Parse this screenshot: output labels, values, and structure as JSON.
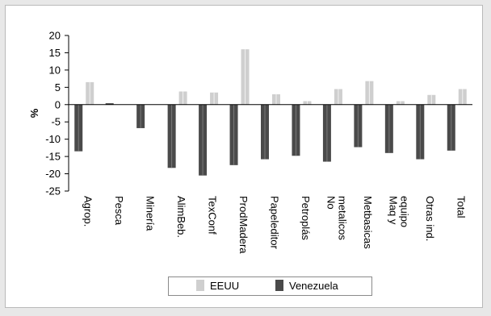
{
  "chart_data": {
    "type": "bar",
    "title": "",
    "xlabel": "",
    "ylabel": "%",
    "ylim": [
      -25,
      20
    ],
    "yticks": [
      20,
      15,
      10,
      5,
      0,
      -5,
      -10,
      -15,
      -20,
      -25
    ],
    "grid": false,
    "legend_position": "bottom",
    "categories": [
      "Agrop.",
      "Pesca",
      "Minería",
      "AlimBeb.",
      "TexConf",
      "ProdMadera",
      "Papeleditor",
      "Petroplás",
      "No metalicos",
      "Metbasicas",
      "Maq y equipo",
      "Otras ind.",
      "Total"
    ],
    "category_lines": [
      [
        "Agrop."
      ],
      [
        "Pesca"
      ],
      [
        "Minería"
      ],
      [
        "AlimBeb."
      ],
      [
        "TexConf"
      ],
      [
        "ProdMadera"
      ],
      [
        "Papeleditor"
      ],
      [
        "Petroplás"
      ],
      [
        "No",
        "metalicos"
      ],
      [
        "Metbasicas"
      ],
      [
        "Maq y",
        "equipo"
      ],
      [
        "Otras ind."
      ],
      [
        "Total"
      ]
    ],
    "series": [
      {
        "name": "EEUU",
        "color": "#cfcfcf",
        "values": [
          6.5,
          0,
          0,
          3.8,
          3.5,
          16.0,
          3.0,
          1.0,
          4.5,
          6.8,
          1.0,
          2.8,
          4.5
        ]
      },
      {
        "name": "Venezuela",
        "color": "#4a4a4a",
        "values": [
          -13.5,
          0.4,
          -6.8,
          -18.3,
          -20.5,
          -17.5,
          -15.8,
          -14.8,
          -16.5,
          -12.3,
          -14.0,
          -15.8,
          -13.3
        ]
      }
    ]
  }
}
